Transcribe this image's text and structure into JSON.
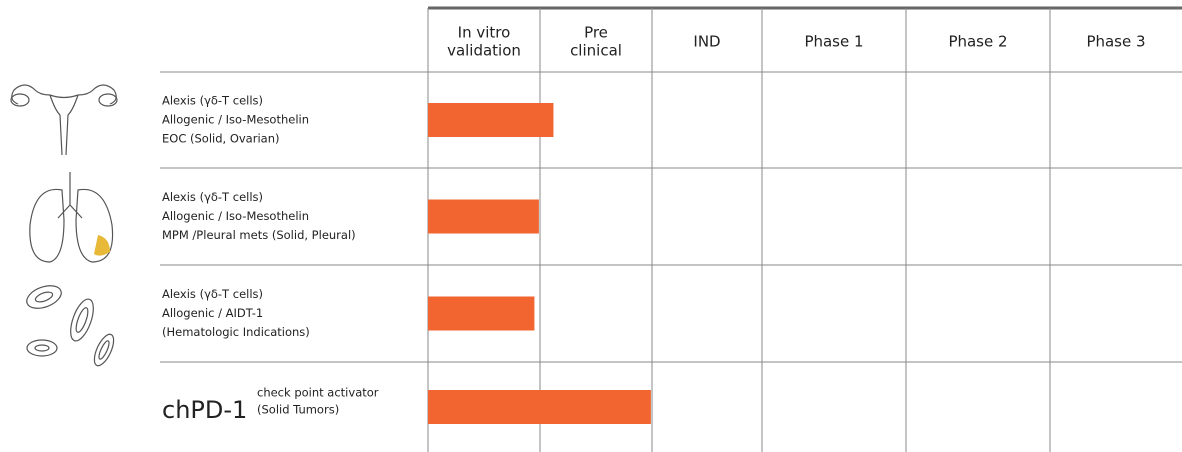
{
  "chart_data": {
    "type": "pipeline",
    "stages": [
      [
        "In vitro",
        "validation"
      ],
      [
        "Pre",
        "clinical"
      ],
      [
        "IND"
      ],
      [
        "Phase 1"
      ],
      [
        "Phase 2"
      ],
      [
        "Phase 3"
      ]
    ],
    "programs": [
      {
        "lines": [
          "Alexis (γδ-T cells)",
          "Allogenic / Iso-Mesothelin",
          "EOC (Solid, Ovarian)"
        ]
      },
      {
        "lines": [
          "Alexis (γδ-T cells)",
          "Allogenic /  Iso-Mesothelin",
          "MPM /Pleural mets (Solid, Pleural)"
        ]
      },
      {
        "lines": [
          "Alexis (γδ-T cells)",
          "Allogenic / AIDT-1",
          "(Hematologic Indications)"
        ]
      },
      {
        "name": "chPD-1",
        "lines": [
          "check point activator",
          "(Solid Tumors)"
        ]
      }
    ],
    "values": [
      1.12,
      0.99,
      0.95,
      1.99
    ],
    "color": "#f26430"
  }
}
